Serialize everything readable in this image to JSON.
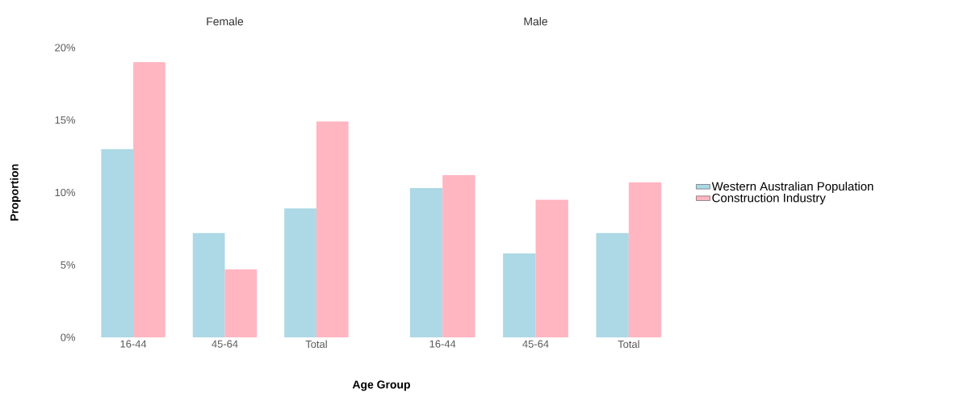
{
  "chart_data": [
    {
      "type": "bar",
      "title": "Female",
      "xlabel": "Age Group",
      "ylabel": "Proportion",
      "categories": [
        "16-44",
        "45-64",
        "Total"
      ],
      "ylim": [
        0,
        20
      ],
      "yticks": [
        {
          "value": 0,
          "label": "0%"
        },
        {
          "value": 5,
          "label": "5%"
        },
        {
          "value": 10,
          "label": "10%"
        },
        {
          "value": 15,
          "label": "15%"
        },
        {
          "value": 20,
          "label": "20%"
        }
      ],
      "series": [
        {
          "color": "#add8e6",
          "values": [
            13.0,
            7.2,
            8.9
          ]
        },
        {
          "color": "#ffb6c1",
          "values": [
            19.0,
            4.7,
            14.9
          ]
        }
      ]
    },
    {
      "type": "bar",
      "title": "Male",
      "categories": [
        "16-44",
        "45-64",
        "Total"
      ],
      "ylim": [
        0,
        20
      ],
      "tick_labels": "x",
      "legend": "right",
      "series": [
        {
          "name": "Western Australian Population",
          "color": "#add8e6",
          "values": [
            10.3,
            5.8,
            7.2
          ]
        },
        {
          "name": "Construction Industry",
          "color": "#ffb6c1",
          "values": [
            11.2,
            9.5,
            10.7
          ]
        }
      ]
    }
  ]
}
